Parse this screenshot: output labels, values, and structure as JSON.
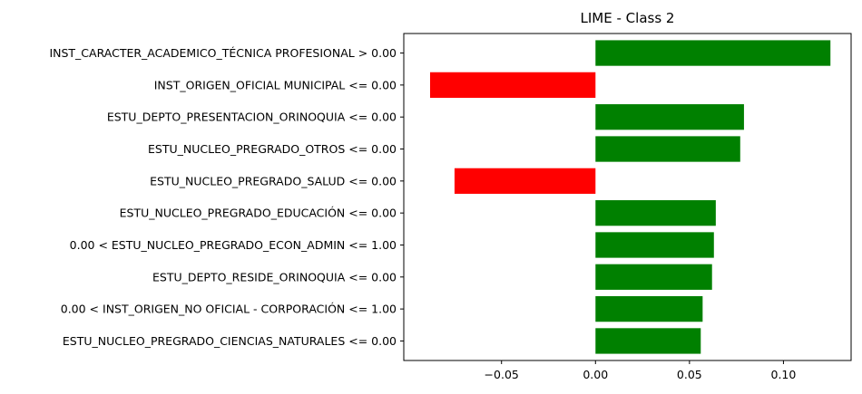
{
  "chart_data": {
    "type": "bar",
    "orientation": "horizontal",
    "title": "LIME - Class 2",
    "xlabel": "",
    "ylabel": "",
    "xlim": [
      -0.102,
      0.136
    ],
    "xticks": [
      -0.05,
      0.0,
      0.05,
      0.1
    ],
    "xtick_labels": [
      "−0.05",
      "0.00",
      "0.05",
      "0.10"
    ],
    "grid": false,
    "colors": {
      "positive": "#008000",
      "negative": "#ff0000"
    },
    "categories": [
      "INST_CARACTER_ACADEMICO_TÉCNICA PROFESIONAL > 0.00",
      "INST_ORIGEN_OFICIAL MUNICIPAL <= 0.00",
      "ESTU_DEPTO_PRESENTACION_ORINOQUIA <= 0.00",
      "ESTU_NUCLEO_PREGRADO_OTROS <= 0.00",
      "ESTU_NUCLEO_PREGRADO_SALUD <= 0.00",
      "ESTU_NUCLEO_PREGRADO_EDUCACIÓN <= 0.00",
      "0.00 < ESTU_NUCLEO_PREGRADO_ECON_ADMIN <= 1.00",
      "ESTU_DEPTO_RESIDE_ORINOQUIA <= 0.00",
      "0.00 < INST_ORIGEN_NO OFICIAL - CORPORACIÓN <= 1.00",
      "ESTU_NUCLEO_PREGRADO_CIENCIAS_NATURALES <= 0.00"
    ],
    "values": [
      0.125,
      -0.088,
      0.079,
      0.077,
      -0.075,
      0.064,
      0.063,
      0.062,
      0.057,
      0.056
    ]
  }
}
